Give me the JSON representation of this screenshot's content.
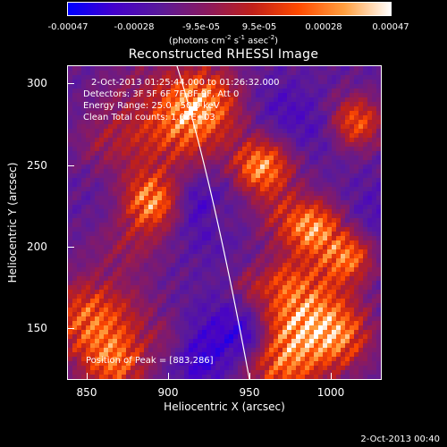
{
  "colorbar": {
    "ticks": [
      "-0.00047",
      "-0.00028",
      "-9.5e-05",
      "9.5e-05",
      "0.00028",
      "0.00047"
    ],
    "units_prefix": "(photons cm",
    "units_sup1": "-2",
    "units_mid": " s",
    "units_sup2": "-1",
    "units_mid2": " asec",
    "units_sup3": "-2",
    "units_suffix": ")"
  },
  "title": "Reconstructed RHESSI Image",
  "info": {
    "time_range": "2-Oct-2013 01:25:44.000 to 01:26:32.000",
    "detectors": "Detectors: 3F 5F 6F 7F 8F 9F, Att 0",
    "energy": "Energy Range: 25.0 - 50.0 keV",
    "clean": "Clean     Total counts: 1.03E+03",
    "peak": "Position of Peak = [883,286]"
  },
  "axes": {
    "xlabel": "Heliocentric X (arcsec)",
    "ylabel": "Heliocentric Y (arcsec)",
    "xticks": [
      "850",
      "900",
      "950",
      "1000"
    ],
    "yticks": [
      "300",
      "250",
      "200",
      "150"
    ]
  },
  "footer": "2-Oct-2013 00:40",
  "colors": {
    "background": "#000000",
    "colormap": [
      "#0000ff",
      "#4400cc",
      "#5a1a9a",
      "#8a1a60",
      "#c0201a",
      "#ff4a00",
      "#ffa040",
      "#ffffff"
    ]
  }
}
